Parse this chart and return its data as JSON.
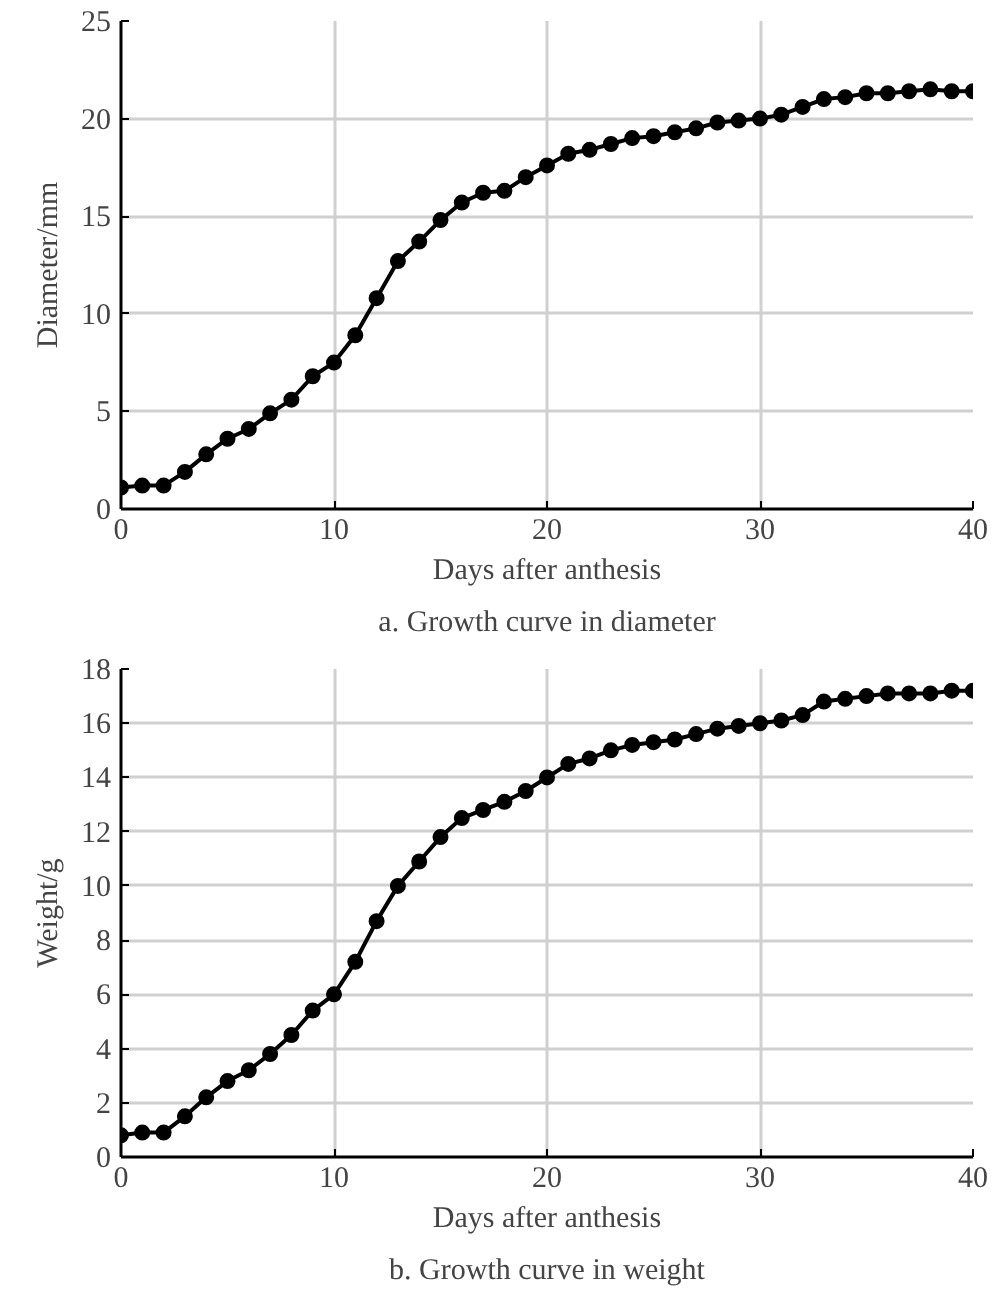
{
  "chart_data": [
    {
      "type": "line",
      "xlabel": "Days after anthesis",
      "ylabel": "Diameter/mm",
      "annotations": [
        "a. Growth curve in diameter"
      ],
      "x": [
        0,
        1,
        2,
        3,
        4,
        5,
        6,
        7,
        8,
        9,
        10,
        11,
        12,
        13,
        14,
        15,
        16,
        17,
        18,
        19,
        20,
        21,
        22,
        23,
        24,
        25,
        26,
        27,
        28,
        29,
        30,
        31,
        32,
        33,
        34,
        35,
        36,
        37,
        38,
        39,
        40
      ],
      "series": [
        {
          "color": "#000000",
          "values": [
            1.1,
            1.2,
            1.2,
            1.9,
            2.8,
            3.6,
            4.1,
            4.9,
            5.6,
            6.8,
            7.5,
            8.9,
            10.8,
            12.7,
            13.7,
            14.8,
            15.7,
            16.2,
            16.3,
            17.0,
            17.6,
            18.2,
            18.4,
            18.7,
            19.0,
            19.1,
            19.3,
            19.5,
            19.8,
            19.9,
            20.0,
            20.2,
            20.6,
            21.0,
            21.1,
            21.3,
            21.3,
            21.4,
            21.5,
            21.4,
            21.4
          ]
        }
      ],
      "xlim": [
        0,
        40
      ],
      "xticks": [
        0,
        10,
        20,
        30,
        40
      ],
      "ylim": [
        0,
        25
      ],
      "yticks": [
        0,
        5,
        10,
        15,
        20,
        25
      ],
      "grid": true,
      "marker": "circle",
      "line_style": "solid"
    },
    {
      "type": "line",
      "xlabel": "Days after anthesis",
      "ylabel": "Weight/g",
      "annotations": [
        "b. Growth curve in weight"
      ],
      "x": [
        0,
        1,
        2,
        3,
        4,
        5,
        6,
        7,
        8,
        9,
        10,
        11,
        12,
        13,
        14,
        15,
        16,
        17,
        18,
        19,
        20,
        21,
        22,
        23,
        24,
        25,
        26,
        27,
        28,
        29,
        30,
        31,
        32,
        33,
        34,
        35,
        36,
        37,
        38,
        39,
        40
      ],
      "series": [
        {
          "color": "#000000",
          "values": [
            0.8,
            0.9,
            0.9,
            1.5,
            2.2,
            2.8,
            3.2,
            3.8,
            4.5,
            5.4,
            6.0,
            7.2,
            8.7,
            10.0,
            10.9,
            11.8,
            12.5,
            12.8,
            13.1,
            13.5,
            14.0,
            14.5,
            14.7,
            15.0,
            15.2,
            15.3,
            15.4,
            15.6,
            15.8,
            15.9,
            16.0,
            16.1,
            16.3,
            16.8,
            16.9,
            17.0,
            17.1,
            17.1,
            17.1,
            17.2,
            17.2
          ]
        }
      ],
      "xlim": [
        0,
        40
      ],
      "xticks": [
        0,
        10,
        20,
        30,
        40
      ],
      "ylim": [
        0,
        18
      ],
      "yticks": [
        0,
        2,
        4,
        6,
        8,
        10,
        12,
        14,
        16,
        18
      ],
      "grid": true,
      "marker": "circle",
      "line_style": "solid"
    }
  ]
}
